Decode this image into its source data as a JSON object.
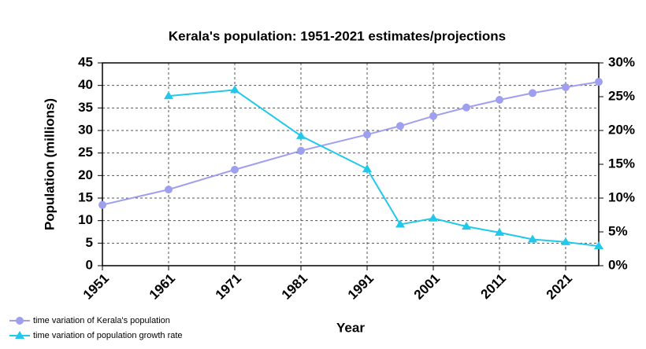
{
  "chart_data": {
    "type": "line",
    "title": "Kerala's population: 1951-2021 estimates/projections",
    "x_label": "Year",
    "y_label": "Population (millions)",
    "x": [
      1951,
      1961,
      1971,
      1981,
      1991,
      1996,
      2001,
      2006,
      2011,
      2016,
      2021,
      2026
    ],
    "xlim": [
      1951,
      2026
    ],
    "xticks": [
      1951,
      1961,
      1971,
      1981,
      1991,
      2001,
      2011,
      2021
    ],
    "ylim": [
      0,
      45
    ],
    "yticks": [
      0,
      5,
      10,
      15,
      20,
      25,
      30,
      35,
      40,
      45
    ],
    "y2lim": [
      0,
      30
    ],
    "y2ticks": [
      {
        "value": 0,
        "label": "0%"
      },
      {
        "value": 5,
        "label": "5%"
      },
      {
        "value": 10,
        "label": "10%"
      },
      {
        "value": 15,
        "label": "15%"
      },
      {
        "value": 20,
        "label": "20%"
      },
      {
        "value": 25,
        "label": "25%"
      },
      {
        "value": 30,
        "label": "30%"
      }
    ],
    "grid": true,
    "legend": "bottom-left",
    "series": [
      {
        "name": "time variation of Kerala's population",
        "color": "#9f9ff0",
        "marker": "circle",
        "values": [
          13.5,
          16.9,
          21.3,
          25.5,
          29.1,
          31.0,
          33.2,
          35.1,
          36.8,
          38.3,
          39.6,
          40.8
        ]
      },
      {
        "name": "time variation of population growth rate",
        "color": "#22c8ea",
        "marker": "triangle",
        "axis": "y2",
        "values": [
          null,
          25.1,
          26.0,
          19.2,
          14.3,
          6.1,
          7.0,
          5.8,
          4.9,
          3.9,
          3.5,
          2.9
        ]
      }
    ]
  }
}
